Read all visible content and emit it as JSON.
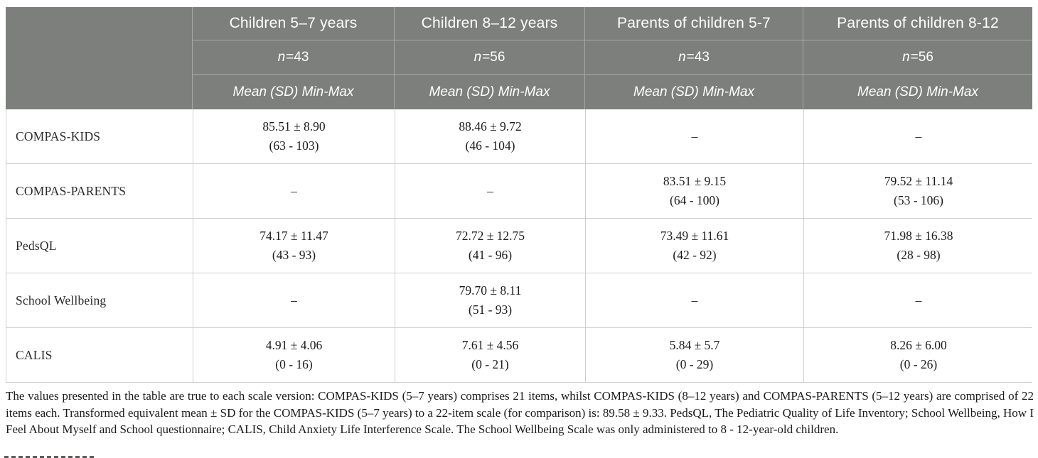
{
  "table": {
    "columns": [
      {
        "group": "Children 5–7 years",
        "n_symbol": "n",
        "n_value": "=43",
        "measure": "Mean (SD) Min-Max"
      },
      {
        "group": "Children 8–12 years",
        "n_symbol": "n",
        "n_value": "=56",
        "measure": "Mean (SD) Min-Max"
      },
      {
        "group": "Parents of children 5-7",
        "n_symbol": "n",
        "n_value": "=43",
        "measure": "Mean (SD) Min-Max"
      },
      {
        "group": "Parents of children 8-12",
        "n_symbol": "n",
        "n_value": "=56",
        "measure": "Mean (SD) Min-Max"
      }
    ],
    "rows": [
      {
        "label": "COMPAS-KIDS",
        "cells": [
          {
            "mean": "85.51 ± 8.90",
            "range": "(63 - 103)"
          },
          {
            "mean": "88.46 ± 9.72",
            "range": "(46 - 104)"
          },
          {
            "mean": "–",
            "range": ""
          },
          {
            "mean": "–",
            "range": ""
          }
        ]
      },
      {
        "label": "COMPAS-PARENTS",
        "cells": [
          {
            "mean": "–",
            "range": ""
          },
          {
            "mean": "–",
            "range": ""
          },
          {
            "mean": "83.51 ± 9.15",
            "range": "(64 - 100)"
          },
          {
            "mean": "79.52 ± 11.14",
            "range": "(53 - 106)"
          }
        ]
      },
      {
        "label": "PedsQL",
        "cells": [
          {
            "mean": "74.17 ± 11.47",
            "range": "(43 - 93)"
          },
          {
            "mean": "72.72 ± 12.75",
            "range": "(41 - 96)"
          },
          {
            "mean": "73.49 ± 11.61",
            "range": "(42 - 92)"
          },
          {
            "mean": "71.98 ± 16.38",
            "range": "(28 - 98)"
          }
        ]
      },
      {
        "label": "School Wellbeing",
        "cells": [
          {
            "mean": "–",
            "range": ""
          },
          {
            "mean": "79.70 ± 8.11",
            "range": "(51 - 93)"
          },
          {
            "mean": "–",
            "range": ""
          },
          {
            "mean": "–",
            "range": ""
          }
        ]
      },
      {
        "label": "CALIS",
        "cells": [
          {
            "mean": "4.91 ± 4.06",
            "range": "(0 - 16)"
          },
          {
            "mean": "7.61 ± 4.56",
            "range": "(0 - 21)"
          },
          {
            "mean": "5.84 ± 5.7",
            "range": "(0 - 29)"
          },
          {
            "mean": "8.26 ± 6.00",
            "range": "(0 - 26)"
          }
        ]
      }
    ]
  },
  "footnote": "The values presented in the table are true to each scale version: COMPAS-KIDS (5–7 years) comprises 21 items, whilst COMPAS-KIDS (8–12 years) and COMPAS-PARENTS (5–12 years) are comprised of 22 items each. Transformed equivalent mean ± SD for the COMPAS-KIDS (5–7 years) to a 22-item scale (for comparison) is: 89.58 ± 9.33. PedsQL, The Pediatric Quality of Life Inventory; School Wellbeing, How I Feel About Myself and School questionnaire; CALIS, Child Anxiety Life Interference Scale. The School Wellbeing Scale was only administered to 8 - 12-year-old children.",
  "colors": {
    "header_bg": "#7d7f7d",
    "header_line": "#a7a8a5",
    "body_line": "#cfcfcd",
    "header_text": "#ffffff",
    "body_text": "#1c1c1c"
  }
}
